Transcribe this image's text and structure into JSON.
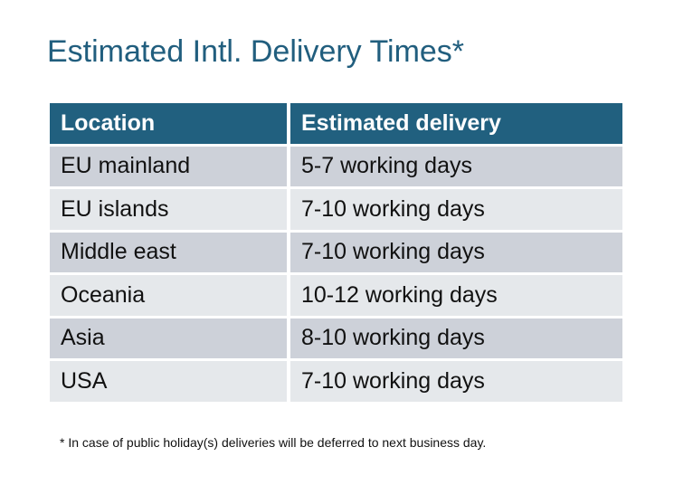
{
  "title": "Estimated Intl. Delivery Times*",
  "table": {
    "headers": [
      "Location",
      "Estimated delivery"
    ],
    "rows": [
      [
        "EU mainland",
        "5-7 working days"
      ],
      [
        "EU islands",
        "7-10 working days"
      ],
      [
        "Middle east",
        "7-10 working days"
      ],
      [
        "Oceania",
        "10-12 working days"
      ],
      [
        "Asia",
        "8-10 working days"
      ],
      [
        "USA",
        "7-10 working days"
      ]
    ]
  },
  "footnote": "* In case of public holiday(s) deliveries will be deferred to next business day.",
  "colors": {
    "header": "#21607f",
    "title": "#215e7e",
    "row_odd": "#cdd1d9",
    "row_even": "#e5e8eb"
  }
}
